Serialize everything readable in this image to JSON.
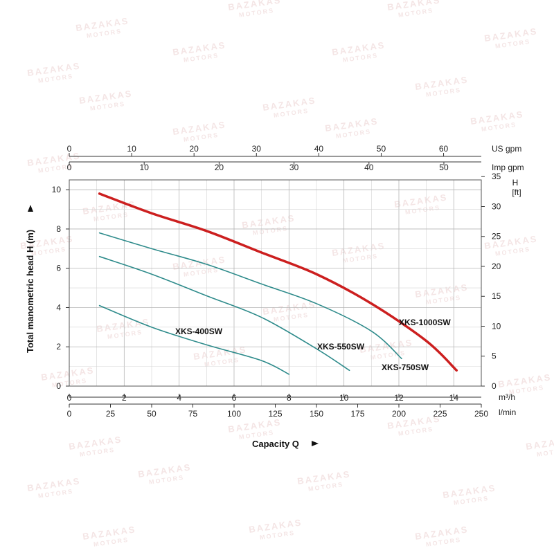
{
  "chart_data": {
    "type": "line",
    "title": "",
    "xlabel": "Capacity Q",
    "ylabel": "Total manometric head H (m)",
    "xlim": [
      0,
      15
    ],
    "ylim": [
      0,
      10.5
    ],
    "grid": true,
    "legend": "none (labels placed next to curves)",
    "axes": {
      "x_bottom_primary": {
        "unit": "m³/h",
        "ticks": [
          0,
          2,
          4,
          6,
          8,
          10,
          12,
          14
        ]
      },
      "x_bottom_secondary": {
        "unit": "l/min",
        "ticks": [
          0,
          25,
          50,
          75,
          100,
          125,
          150,
          175,
          200,
          225,
          250
        ]
      },
      "x_top_us": {
        "unit": "US gpm",
        "ticks": [
          0,
          10,
          20,
          30,
          40,
          50,
          60
        ]
      },
      "x_top_imp": {
        "unit": "Imp gpm",
        "ticks": [
          0,
          10,
          20,
          30,
          40,
          50
        ]
      },
      "y_left": {
        "unit": "m",
        "ticks": [
          0,
          2,
          4,
          6,
          8,
          10
        ]
      },
      "y_right": {
        "unit_line1": "H",
        "unit_line2": "[ft]",
        "ticks": [
          0,
          5,
          10,
          15,
          20,
          25,
          30,
          35
        ]
      }
    },
    "series": [
      {
        "name": "XKS-400SW",
        "color": "#2e8b8b",
        "x": [
          1.1,
          3,
          5,
          7,
          8.0
        ],
        "y": [
          4.1,
          3.0,
          2.1,
          1.3,
          0.6
        ]
      },
      {
        "name": "XKS-550SW",
        "color": "#2e8b8b",
        "x": [
          1.1,
          3,
          5,
          7,
          9,
          10.2
        ],
        "y": [
          6.6,
          5.7,
          4.6,
          3.5,
          1.9,
          0.8
        ]
      },
      {
        "name": "XKS-750SW",
        "color": "#2e8b8b",
        "x": [
          1.1,
          3,
          5,
          7,
          9,
          11,
          12.1
        ],
        "y": [
          7.8,
          7.0,
          6.2,
          5.2,
          4.2,
          2.8,
          1.4
        ]
      },
      {
        "name": "XKS-1000SW",
        "color": "#cc1f1f",
        "x": [
          1.1,
          3,
          5,
          7,
          9,
          11,
          13,
          14.1
        ],
        "y": [
          9.8,
          8.8,
          7.9,
          6.8,
          5.7,
          4.2,
          2.3,
          0.8
        ]
      }
    ]
  },
  "watermark": {
    "brand": "BAZAKAS",
    "sub": "MOTORS"
  }
}
